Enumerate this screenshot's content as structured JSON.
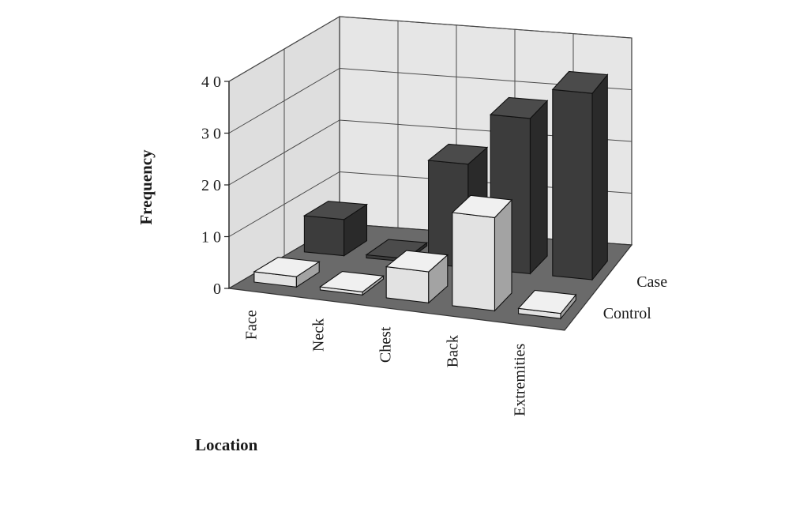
{
  "chart_data": {
    "type": "bar",
    "projection": "3d",
    "categories": [
      "Face",
      "Neck",
      "Chest",
      "Back",
      "Extremities"
    ],
    "series": [
      {
        "name": "Case",
        "values": [
          7,
          0,
          20,
          30,
          36
        ]
      },
      {
        "name": "Control",
        "values": [
          2,
          0,
          6,
          18,
          1
        ]
      }
    ],
    "xlabel": "Location",
    "ylabel": "Frequency",
    "ylim": [
      0,
      40
    ],
    "yticks": [
      {
        "value": 0,
        "label": "0"
      },
      {
        "value": 10,
        "label": "1 0"
      },
      {
        "value": 20,
        "label": "2 0"
      },
      {
        "value": 30,
        "label": "3 0"
      },
      {
        "value": 40,
        "label": "4 0"
      }
    ],
    "grid": true,
    "colors": {
      "case": "#3c3c3c",
      "control": "#e2e2e2",
      "floor": "#6a6a6a",
      "wall": "#e6e6e6",
      "grid": "#4a4a4a"
    }
  }
}
